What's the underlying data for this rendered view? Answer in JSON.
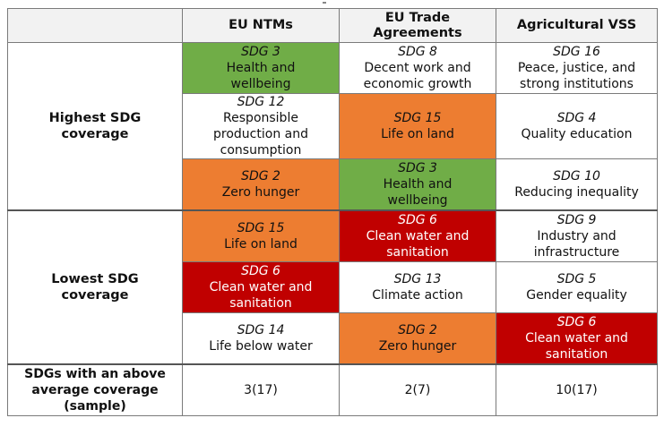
{
  "header": {
    "corner": "",
    "columns": [
      "EU NTMs",
      "EU Trade\nAgreements",
      "Agricultural VSS"
    ]
  },
  "groups": [
    {
      "label": "Highest SDG\ncoverage",
      "rows": [
        [
          {
            "code": "SDG 3",
            "name": "Health and\nwellbeing",
            "color": "green"
          },
          {
            "code": "SDG 8",
            "name": "Decent work and\neconomic growth",
            "color": "white"
          },
          {
            "code": "SDG 16",
            "name": "Peace, justice, and\nstrong institutions",
            "color": "white"
          }
        ],
        [
          {
            "code": "SDG 12",
            "name": "Responsible\nproduction and\nconsumption",
            "color": "white"
          },
          {
            "code": "SDG 15",
            "name": "Life on land",
            "color": "orange"
          },
          {
            "code": "SDG 4",
            "name": "Quality education",
            "color": "white"
          }
        ],
        [
          {
            "code": "SDG 2",
            "name": "Zero hunger",
            "color": "orange"
          },
          {
            "code": "SDG 3",
            "name": "Health and\nwellbeing",
            "color": "green"
          },
          {
            "code": "SDG 10",
            "name": "Reducing inequality",
            "color": "white"
          }
        ]
      ]
    },
    {
      "label": "Lowest SDG\ncoverage",
      "rows": [
        [
          {
            "code": "SDG 15",
            "name": "Life on land",
            "color": "orange"
          },
          {
            "code": "SDG 6",
            "name": "Clean water and\nsanitation",
            "color": "red"
          },
          {
            "code": "SDG 9",
            "name": "Industry and\ninfrastructure",
            "color": "white"
          }
        ],
        [
          {
            "code": "SDG 6",
            "name": "Clean water and\nsanitation",
            "color": "red"
          },
          {
            "code": "SDG 13",
            "name": "Climate action",
            "color": "white"
          },
          {
            "code": "SDG 5",
            "name": "Gender equality",
            "color": "white"
          }
        ],
        [
          {
            "code": "SDG 14",
            "name": "Life below water",
            "color": "white"
          },
          {
            "code": "SDG 2",
            "name": "Zero hunger",
            "color": "orange"
          },
          {
            "code": "SDG 6",
            "name": "Clean water and\nsanitation",
            "color": "red"
          }
        ]
      ]
    }
  ],
  "summary": {
    "label": "SDGs with an above\naverage coverage\n(sample)",
    "values": [
      "3(17)",
      "2(7)",
      "10(17)"
    ]
  },
  "colors": {
    "green": "#70ad47",
    "orange": "#ed7d31",
    "red": "#c00000",
    "header_bg": "#f2f2f2"
  }
}
